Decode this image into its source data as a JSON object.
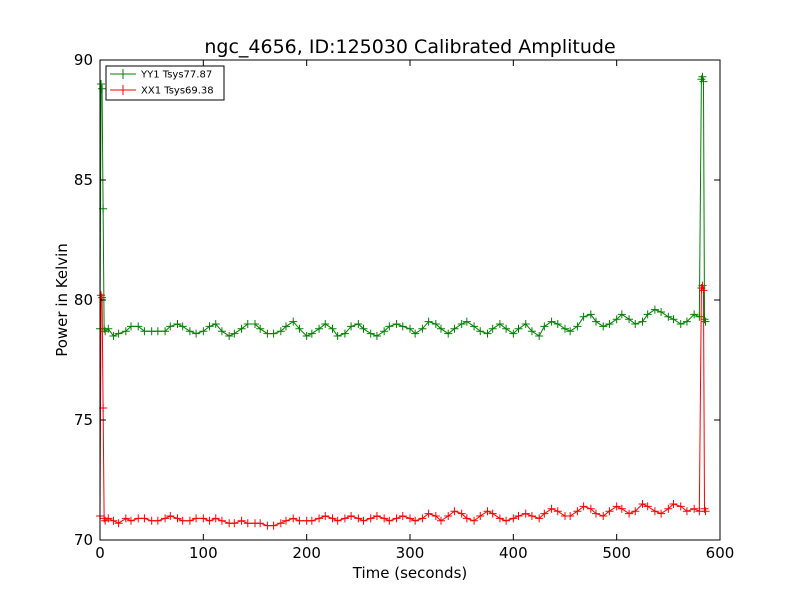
{
  "chart_data": {
    "type": "line",
    "title": "ngc_4656, ID:125030 Calibrated Amplitude",
    "xlabel": "Time (seconds)",
    "ylabel": "Power in Kelvin",
    "xlim": [
      0,
      600
    ],
    "ylim": [
      70,
      90
    ],
    "x_ticks": [
      0,
      100,
      200,
      300,
      400,
      500,
      600
    ],
    "y_ticks": [
      70,
      75,
      80,
      85,
      90
    ],
    "grid": false,
    "legend_position": "top-left",
    "marker": "plus",
    "series": [
      {
        "name": "YY1 Tsys77.87",
        "color": "#008000",
        "x": [
          0,
          1,
          2,
          3,
          4,
          5,
          8,
          13,
          18,
          25,
          30,
          37,
          43,
          50,
          56,
          63,
          68,
          75,
          80,
          87,
          93,
          100,
          106,
          112,
          118,
          125,
          130,
          137,
          143,
          150,
          155,
          162,
          168,
          175,
          180,
          187,
          193,
          200,
          205,
          212,
          218,
          225,
          230,
          237,
          243,
          250,
          255,
          262,
          268,
          275,
          280,
          287,
          293,
          300,
          305,
          312,
          318,
          325,
          330,
          337,
          343,
          350,
          355,
          362,
          368,
          375,
          380,
          387,
          393,
          400,
          405,
          412,
          418,
          425,
          430,
          437,
          443,
          450,
          455,
          462,
          468,
          475,
          480,
          487,
          493,
          500,
          505,
          512,
          518,
          525,
          530,
          537,
          543,
          550,
          555,
          562,
          568,
          575,
          580,
          582,
          583,
          584,
          585,
          586
        ],
        "values": [
          78.8,
          89.0,
          88.8,
          83.8,
          78.8,
          78.7,
          78.8,
          78.5,
          78.6,
          78.7,
          78.9,
          78.9,
          78.7,
          78.7,
          78.7,
          78.7,
          78.9,
          79.0,
          78.9,
          78.7,
          78.6,
          78.7,
          78.9,
          79.0,
          78.7,
          78.5,
          78.6,
          78.8,
          79.0,
          79.0,
          78.8,
          78.6,
          78.6,
          78.7,
          78.9,
          79.1,
          78.8,
          78.5,
          78.6,
          78.8,
          79.0,
          78.8,
          78.5,
          78.6,
          78.9,
          79.0,
          78.8,
          78.6,
          78.5,
          78.7,
          78.9,
          79.0,
          78.9,
          78.8,
          78.6,
          78.8,
          79.1,
          79.0,
          78.8,
          78.6,
          78.8,
          79.0,
          79.1,
          78.9,
          78.7,
          78.6,
          78.8,
          79.0,
          78.8,
          78.6,
          78.8,
          79.0,
          78.7,
          78.5,
          78.9,
          79.1,
          79.0,
          78.8,
          78.7,
          78.9,
          79.3,
          79.4,
          79.1,
          78.9,
          79.0,
          79.2,
          79.4,
          79.2,
          79.0,
          79.1,
          79.4,
          79.6,
          79.5,
          79.3,
          79.2,
          79.0,
          79.1,
          79.4,
          79.3,
          89.2,
          89.3,
          89.1,
          79.2,
          79.1
        ]
      },
      {
        "name": "XX1 Tsys69.38",
        "color": "#ff0000",
        "x": [
          0,
          1,
          2,
          3,
          4,
          5,
          8,
          13,
          18,
          25,
          30,
          37,
          43,
          50,
          56,
          63,
          68,
          75,
          80,
          87,
          93,
          100,
          106,
          112,
          118,
          125,
          130,
          137,
          143,
          150,
          155,
          162,
          168,
          175,
          180,
          187,
          193,
          200,
          205,
          212,
          218,
          225,
          230,
          237,
          243,
          250,
          255,
          262,
          268,
          275,
          280,
          287,
          293,
          300,
          305,
          312,
          318,
          325,
          330,
          337,
          343,
          350,
          355,
          362,
          368,
          375,
          380,
          387,
          393,
          400,
          405,
          412,
          418,
          425,
          430,
          437,
          443,
          450,
          455,
          462,
          468,
          475,
          480,
          487,
          493,
          500,
          505,
          512,
          518,
          525,
          530,
          537,
          543,
          550,
          555,
          562,
          568,
          575,
          580,
          582,
          583,
          584,
          585,
          586
        ],
        "values": [
          71.0,
          80.2,
          80.1,
          75.5,
          70.9,
          70.8,
          70.9,
          70.8,
          70.7,
          70.9,
          70.8,
          70.9,
          70.9,
          70.8,
          70.8,
          70.9,
          71.0,
          70.9,
          70.8,
          70.8,
          70.9,
          70.9,
          70.8,
          70.9,
          70.8,
          70.7,
          70.7,
          70.8,
          70.7,
          70.7,
          70.7,
          70.6,
          70.6,
          70.7,
          70.8,
          70.9,
          70.8,
          70.8,
          70.8,
          70.9,
          71.0,
          70.9,
          70.8,
          70.9,
          71.0,
          70.9,
          70.8,
          70.9,
          71.0,
          70.9,
          70.8,
          70.9,
          71.0,
          70.9,
          70.8,
          70.9,
          71.1,
          71.0,
          70.8,
          71.0,
          71.2,
          71.1,
          70.9,
          70.8,
          71.0,
          71.2,
          71.1,
          70.9,
          70.8,
          70.9,
          71.0,
          71.1,
          71.0,
          70.9,
          71.1,
          71.3,
          71.2,
          71.0,
          71.0,
          71.2,
          71.4,
          71.3,
          71.1,
          71.0,
          71.2,
          71.4,
          71.3,
          71.1,
          71.2,
          71.5,
          71.4,
          71.2,
          71.1,
          71.3,
          71.5,
          71.4,
          71.2,
          71.3,
          71.2,
          80.5,
          80.6,
          80.4,
          71.3,
          71.2
        ]
      }
    ]
  }
}
